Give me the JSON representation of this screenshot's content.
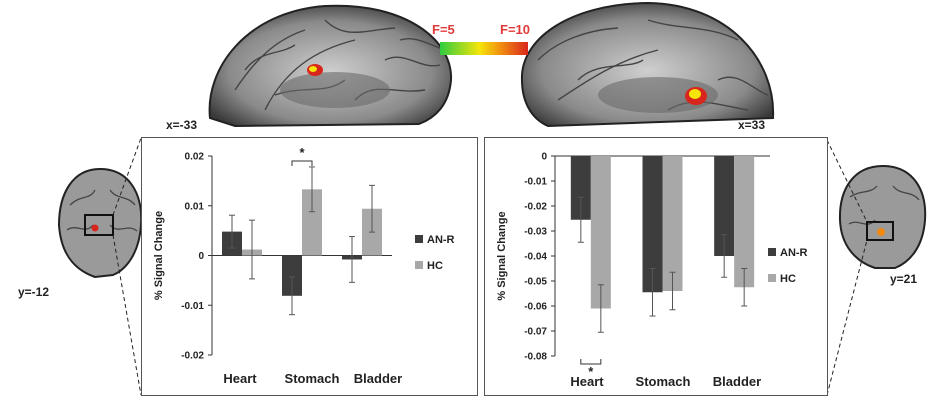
{
  "colors": {
    "anr": "#3d3d3d",
    "hc": "#a8a8a8",
    "scale_low": "#2ecc40",
    "scale_mid": "#f5e50a",
    "scale_high": "#d9261c"
  },
  "color_scale": {
    "min_label": "F=5",
    "max_label": "F=10"
  },
  "coords": {
    "left_sagittal": "x=-33",
    "right_sagittal": "x=33",
    "left_coronal": "y=-12",
    "right_coronal": "y=21"
  },
  "chart_data": [
    {
      "type": "bar",
      "categories": [
        "Heart",
        "Stomach",
        "Bladder"
      ],
      "ylabel": "% Signal Change",
      "ylim": [
        -0.02,
        0.02
      ],
      "ticks": [
        "0.02",
        "0.01",
        "0",
        "-0.01",
        "-0.02"
      ],
      "tick_values": [
        0.02,
        0.01,
        0,
        -0.01,
        -0.02
      ],
      "series": [
        {
          "name": "AN-R",
          "values": [
            0.0048,
            -0.0081,
            -0.0008
          ],
          "errors": [
            0.0033,
            0.0038,
            0.0046
          ]
        },
        {
          "name": "HC",
          "values": [
            0.0012,
            0.0133,
            0.0094
          ],
          "errors": [
            0.0059,
            0.0045,
            0.0047
          ]
        }
      ],
      "significance": {
        "category": "Stomach",
        "label": "*"
      }
    },
    {
      "type": "bar",
      "categories": [
        "Heart",
        "Stomach",
        "Bladder"
      ],
      "ylabel": "% Signal Change",
      "ylim": [
        -0.08,
        0
      ],
      "ticks": [
        "0",
        "-0.01",
        "-0.02",
        "-0.03",
        "-0.04",
        "-0.05",
        "-0.06",
        "-0.07",
        "-0.08"
      ],
      "tick_values": [
        0,
        -0.01,
        -0.02,
        -0.03,
        -0.04,
        -0.05,
        -0.06,
        -0.07,
        -0.08
      ],
      "series": [
        {
          "name": "AN-R",
          "values": [
            -0.0255,
            -0.0545,
            -0.04
          ],
          "errors": [
            0.009,
            0.0095,
            0.0085
          ]
        },
        {
          "name": "HC",
          "values": [
            -0.061,
            -0.054,
            -0.0525
          ],
          "errors": [
            0.0095,
            0.0075,
            0.0075
          ]
        }
      ],
      "significance": {
        "category": "Heart",
        "label": "*"
      }
    }
  ]
}
